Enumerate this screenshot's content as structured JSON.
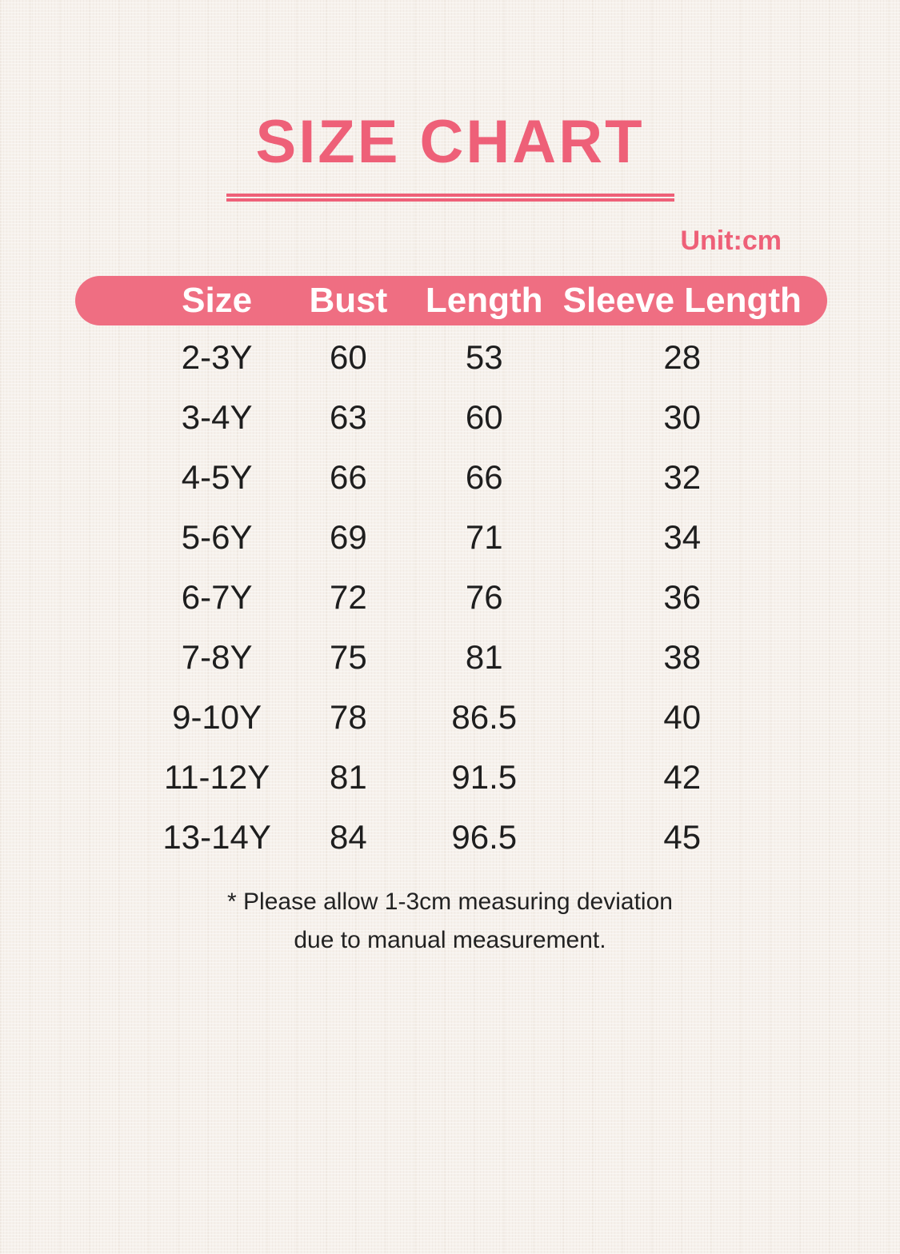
{
  "page": {
    "title": "SIZE CHART",
    "unit_label": "Unit:cm",
    "note_line1": "* Please allow 1-3cm measuring deviation",
    "note_line2": "due to manual measurement.",
    "colors": {
      "accent": "#ee6078",
      "header_bar": "#ef6e82",
      "background": "#f6f1ec",
      "text": "#1e1e1e"
    }
  },
  "table": {
    "headers": [
      "Size",
      "Bust",
      "Length",
      "Sleeve Length"
    ],
    "rows": [
      [
        "2-3Y",
        "60",
        "53",
        "28"
      ],
      [
        "3-4Y",
        "63",
        "60",
        "30"
      ],
      [
        "4-5Y",
        "66",
        "66",
        "32"
      ],
      [
        "5-6Y",
        "69",
        "71",
        "34"
      ],
      [
        "6-7Y",
        "72",
        "76",
        "36"
      ],
      [
        "7-8Y",
        "75",
        "81",
        "38"
      ],
      [
        "9-10Y",
        "78",
        "86.5",
        "40"
      ],
      [
        "11-12Y",
        "81",
        "91.5",
        "42"
      ],
      [
        "13-14Y",
        "84",
        "96.5",
        "45"
      ]
    ]
  }
}
